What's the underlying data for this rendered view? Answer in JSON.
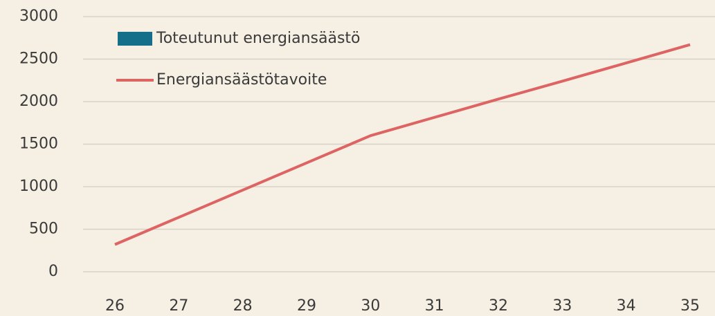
{
  "chart_data": {
    "type": "line",
    "categories": [
      "26",
      "27",
      "28",
      "29",
      "30",
      "31",
      "32",
      "33",
      "34",
      "35"
    ],
    "series": [
      {
        "name": "Toteutunut energiansäästö",
        "type": "bar",
        "color": "#166f8a",
        "values": [
          null,
          null,
          null,
          null,
          null,
          null,
          null,
          null,
          null,
          null
        ]
      },
      {
        "name": "Energiansäästötavoite",
        "type": "line",
        "color": "#de6464",
        "values": [
          320,
          640,
          960,
          1280,
          1600,
          1815,
          2030,
          2240,
          2455,
          2670
        ]
      }
    ],
    "ylim": [
      0,
      3000
    ],
    "yticks": [
      0,
      500,
      1000,
      1500,
      2000,
      2500,
      3000
    ],
    "grid": true,
    "legend": "top-left"
  }
}
